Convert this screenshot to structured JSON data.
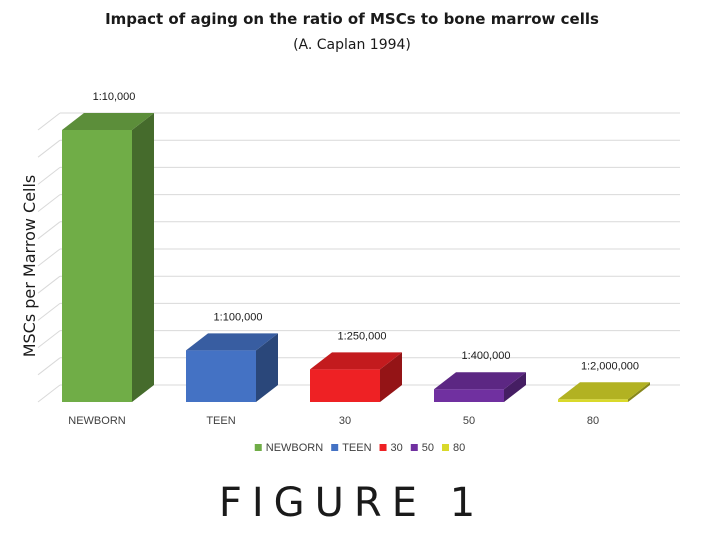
{
  "chart_data": {
    "type": "bar",
    "title": "Impact of aging on the ratio of MSCs to bone marrow cells",
    "subtitle": "(A. Caplan 1994)",
    "ylabel": "MSCs per Marrow Cells",
    "xlabel": "",
    "categories": [
      "NEWBORN",
      "TEEN",
      "30",
      "50",
      "80"
    ],
    "values": [
      1.0,
      0.19,
      0.12,
      0.047,
      0.01
    ],
    "data_labels": [
      "1:10,000",
      "1:100,000",
      "1:250,000",
      "1:400,000",
      "1:2,000,000"
    ],
    "colors": [
      "#70ad47",
      "#4472c4",
      "#ee2124",
      "#7030a0",
      "#d9d92a"
    ],
    "legend": {
      "position": "bottom",
      "entries": [
        "NEWBORN",
        "TEEN",
        "30",
        "50",
        "80"
      ]
    },
    "grid": true,
    "style": "3d-bar"
  },
  "figure_caption": "FIGURE 1"
}
